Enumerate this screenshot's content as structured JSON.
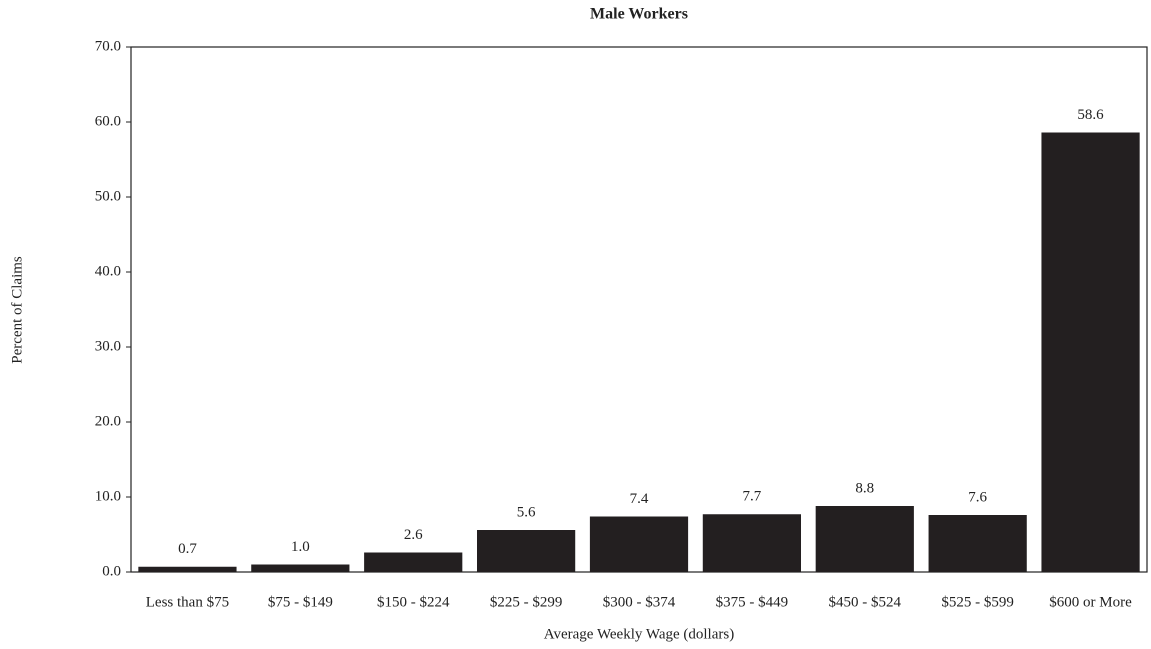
{
  "chart_data": {
    "type": "bar",
    "title": "Male Workers",
    "x_label": "Average Weekly Wage (dollars)",
    "y_label": "Percent of Claims",
    "categories": [
      "Less than $75",
      "$75 - $149",
      "$150 - $224",
      "$225 - $299",
      "$300 - $374",
      "$375 - $449",
      "$450 - $524",
      "$525 - $599",
      "$600 or More"
    ],
    "values": [
      0.7,
      1.0,
      2.6,
      5.6,
      7.4,
      7.7,
      8.8,
      7.6,
      58.6
    ],
    "value_labels": [
      "0.7",
      "1.0",
      "2.6",
      "5.6",
      "7.4",
      "7.7",
      "8.8",
      "7.6",
      "58.6"
    ],
    "color": "#231f20",
    "ylim": [
      0,
      70
    ],
    "yticks": [
      {
        "value": 0,
        "label": "0.0"
      },
      {
        "value": 10,
        "label": "10.0"
      },
      {
        "value": 20,
        "label": "20.0"
      },
      {
        "value": 30,
        "label": "30.0"
      },
      {
        "value": 40,
        "label": "40.0"
      },
      {
        "value": 50,
        "label": "50.0"
      },
      {
        "value": 60,
        "label": "60.0"
      },
      {
        "value": 70,
        "label": "70.0"
      }
    ],
    "grid": false
  }
}
